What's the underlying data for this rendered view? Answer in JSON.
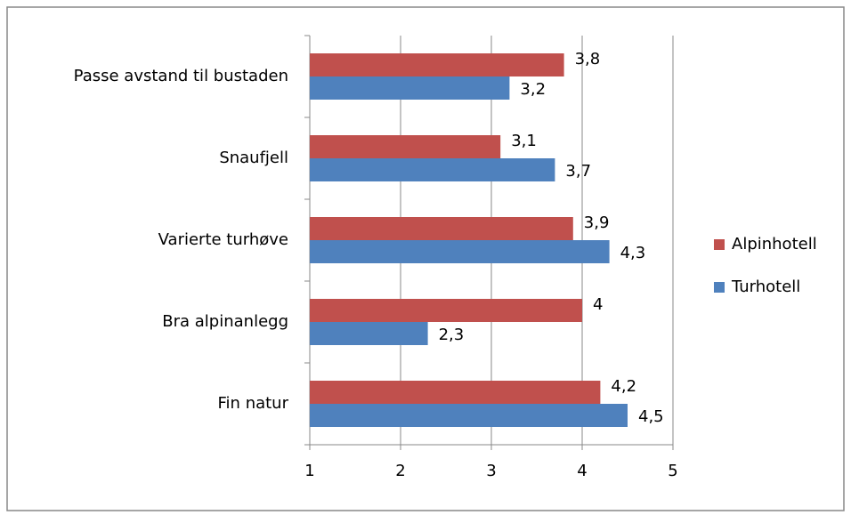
{
  "chart_data": {
    "type": "hbar",
    "categories": [
      "Passe avstand til bustaden",
      "Snaufjell",
      "Varierte turhøve",
      "Bra alpinanlegg",
      "Fin natur"
    ],
    "series": [
      {
        "name": "Alpinhotell",
        "color": "#c0504d",
        "values": [
          3.8,
          3.1,
          3.9,
          4,
          4.2
        ],
        "value_labels": [
          "3,8",
          "3,1",
          "3,9",
          "4",
          "4,2"
        ]
      },
      {
        "name": "Turhotell",
        "color": "#4f81bd",
        "values": [
          3.2,
          3.7,
          4.3,
          2.3,
          4.5
        ],
        "value_labels": [
          "3,2",
          "3,7",
          "4,3",
          "2,3",
          "4,5"
        ]
      }
    ],
    "xlim": [
      1,
      5
    ],
    "xticks": [
      1,
      2,
      3,
      4,
      5
    ],
    "grid": true,
    "legend": "right"
  }
}
